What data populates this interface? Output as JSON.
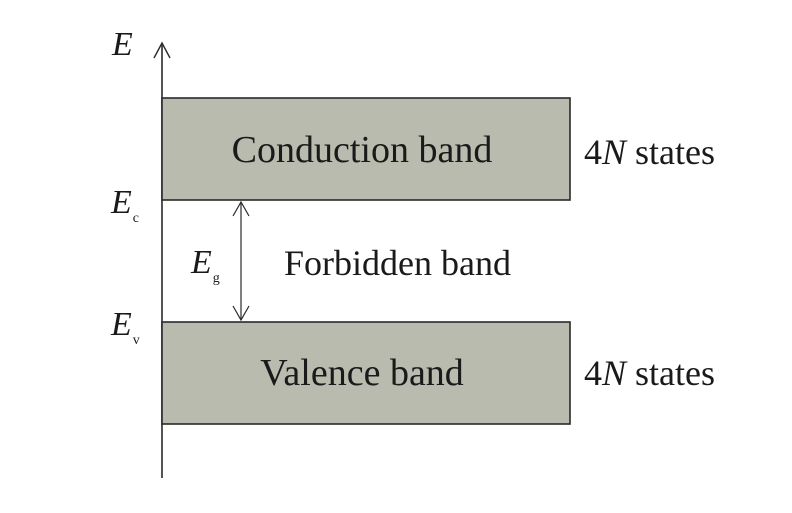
{
  "axis": {
    "symbol": "E"
  },
  "levels": {
    "conduction_edge": {
      "symbol": "E",
      "subscript": "c"
    },
    "valence_edge": {
      "symbol": "E",
      "subscript": "v"
    },
    "gap": {
      "symbol": "E",
      "subscript": "g"
    }
  },
  "bands": {
    "conduction": {
      "label": "Conduction band",
      "states_prefix": "4",
      "states_var": "N",
      "states_suffix": " states"
    },
    "forbidden": {
      "label": "Forbidden band"
    },
    "valence": {
      "label": "Valence band",
      "states_prefix": "4",
      "states_var": "N",
      "states_suffix": " states"
    }
  },
  "colors": {
    "band_fill": "#b9bbae",
    "band_stroke": "#2a2a2a",
    "line": "#2a2a2a"
  }
}
